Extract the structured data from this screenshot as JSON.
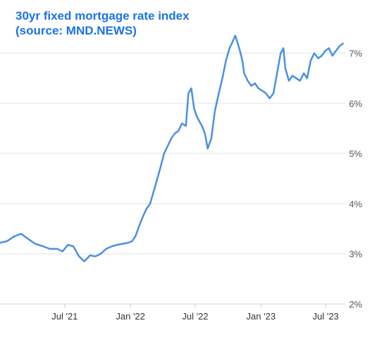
{
  "chart_data": {
    "type": "line",
    "title_lines": [
      "30yr fixed mortgage rate index",
      "(source: MND.NEWS)"
    ],
    "xlabel": "",
    "ylabel": "",
    "x_ticks": [
      "Jul '21",
      "Jan '22",
      "Jul '22",
      "Jan '23",
      "Jul '23"
    ],
    "y_ticks": [
      "2%",
      "3%",
      "4%",
      "5%",
      "6%",
      "7%"
    ],
    "ylim": [
      2,
      7.5
    ],
    "xlim": [
      "2021-01-01",
      "2023-08-25"
    ],
    "grid": "horizontal",
    "legend": "none",
    "line_color": "#4a90e2",
    "series": [
      {
        "x": [
          "2021-01-01",
          "2021-01-20",
          "2021-02-10",
          "2021-03-01",
          "2021-03-20",
          "2021-04-10",
          "2021-05-01",
          "2021-05-20",
          "2021-06-10",
          "2021-06-25",
          "2021-07-10",
          "2021-07-25",
          "2021-08-10",
          "2021-08-25",
          "2021-09-10",
          "2021-09-25",
          "2021-10-10",
          "2021-10-25",
          "2021-11-10",
          "2021-11-25",
          "2021-12-10",
          "2021-12-25",
          "2022-01-05",
          "2022-01-15",
          "2022-01-25",
          "2022-02-05",
          "2022-02-15",
          "2022-02-25",
          "2022-03-05",
          "2022-03-15",
          "2022-03-25",
          "2022-04-05",
          "2022-04-15",
          "2022-04-25",
          "2022-05-05",
          "2022-05-15",
          "2022-05-25",
          "2022-06-05",
          "2022-06-12",
          "2022-06-20",
          "2022-06-28",
          "2022-07-05",
          "2022-07-12",
          "2022-07-20",
          "2022-07-28",
          "2022-08-05",
          "2022-08-15",
          "2022-08-25",
          "2022-09-05",
          "2022-09-15",
          "2022-09-25",
          "2022-10-05",
          "2022-10-15",
          "2022-10-21",
          "2022-10-28",
          "2022-11-05",
          "2022-11-10",
          "2022-11-15",
          "2022-11-25",
          "2022-12-05",
          "2022-12-15",
          "2022-12-25",
          "2023-01-05",
          "2023-01-15",
          "2023-01-25",
          "2023-02-05",
          "2023-02-15",
          "2023-02-25",
          "2023-03-05",
          "2023-03-10",
          "2023-03-20",
          "2023-03-30",
          "2023-04-10",
          "2023-04-20",
          "2023-05-01",
          "2023-05-10",
          "2023-05-20",
          "2023-05-30",
          "2023-06-10",
          "2023-06-20",
          "2023-06-30",
          "2023-07-10",
          "2023-07-20",
          "2023-07-30",
          "2023-08-10",
          "2023-08-20"
        ],
        "values": [
          3.22,
          3.25,
          3.35,
          3.4,
          3.3,
          3.2,
          3.15,
          3.1,
          3.1,
          3.05,
          3.18,
          3.15,
          2.95,
          2.85,
          2.97,
          2.95,
          3.0,
          3.1,
          3.15,
          3.18,
          3.2,
          3.22,
          3.25,
          3.35,
          3.55,
          3.75,
          3.9,
          4.0,
          4.2,
          4.45,
          4.7,
          5.0,
          5.15,
          5.3,
          5.4,
          5.45,
          5.6,
          5.55,
          6.2,
          6.3,
          5.9,
          5.75,
          5.65,
          5.55,
          5.4,
          5.1,
          5.3,
          5.85,
          6.2,
          6.5,
          6.85,
          7.1,
          7.25,
          7.35,
          7.2,
          7.0,
          6.85,
          6.6,
          6.45,
          6.35,
          6.4,
          6.3,
          6.25,
          6.2,
          6.1,
          6.2,
          6.6,
          7.0,
          7.1,
          6.7,
          6.45,
          6.55,
          6.5,
          6.45,
          6.6,
          6.5,
          6.85,
          7.0,
          6.9,
          6.95,
          7.05,
          7.1,
          6.95,
          7.05,
          7.15,
          7.2
        ]
      }
    ]
  }
}
